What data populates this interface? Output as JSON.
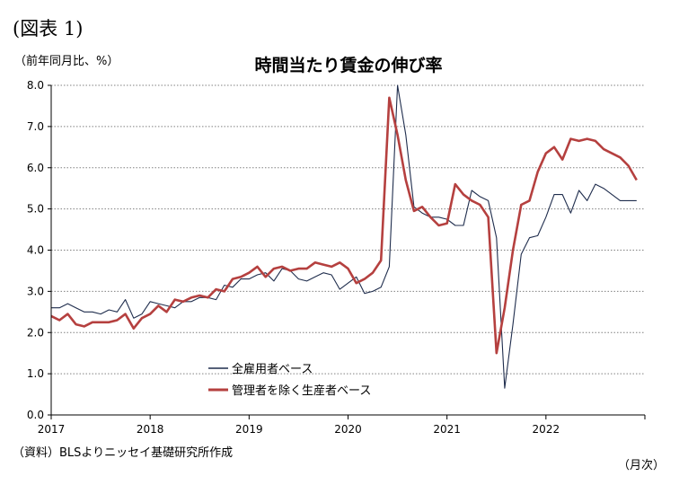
{
  "figure_label": "(図表 1)",
  "unit_label": "（前年同月比、%）",
  "source": "（資料）BLSよりニッセイ基礎研究所作成",
  "x_unit": "（月次）",
  "chart_data": {
    "type": "line",
    "title": "時間当たり賃金の伸び率",
    "ylabel": "（前年同月比、%）",
    "xlabel": "（月次）",
    "ylim": [
      0,
      8
    ],
    "yticks": [
      "0.0",
      "1.0",
      "2.0",
      "3.0",
      "4.0",
      "5.0",
      "6.0",
      "7.0",
      "8.0"
    ],
    "xticks": [
      "2017",
      "2018",
      "2019",
      "2020",
      "2021",
      "2022"
    ],
    "x_start": "2017-01",
    "grid": "horizontal dotted",
    "legend_position": "bottom-center",
    "series": [
      {
        "name": "全雇用者ベース",
        "color": "#1f2d4d",
        "values": [
          2.6,
          2.6,
          2.7,
          2.6,
          2.5,
          2.5,
          2.45,
          2.55,
          2.5,
          2.8,
          2.35,
          2.45,
          2.75,
          2.7,
          2.65,
          2.6,
          2.75,
          2.75,
          2.85,
          2.85,
          2.8,
          3.15,
          3.1,
          3.3,
          3.3,
          3.4,
          3.45,
          3.25,
          3.55,
          3.5,
          3.3,
          3.25,
          3.35,
          3.45,
          3.4,
          3.05,
          3.2,
          3.35,
          2.95,
          3.0,
          3.1,
          3.6,
          8.0,
          6.8,
          5.05,
          4.9,
          4.8,
          4.8,
          4.75,
          4.6,
          4.6,
          5.45,
          5.3,
          5.2,
          4.3,
          0.65,
          2.2,
          3.9,
          4.3,
          4.35,
          4.8,
          5.35,
          5.35,
          4.9,
          5.45,
          5.2,
          5.6,
          5.5,
          5.35,
          5.2,
          5.2,
          5.2
        ]
      },
      {
        "name": "管理者を除く生産者ベース",
        "color": "#b5403f",
        "values": [
          2.4,
          2.3,
          2.45,
          2.2,
          2.15,
          2.25,
          2.25,
          2.25,
          2.3,
          2.45,
          2.1,
          2.35,
          2.45,
          2.65,
          2.5,
          2.8,
          2.75,
          2.85,
          2.9,
          2.85,
          3.05,
          3.0,
          3.3,
          3.35,
          3.45,
          3.6,
          3.35,
          3.55,
          3.6,
          3.5,
          3.55,
          3.55,
          3.7,
          3.65,
          3.6,
          3.7,
          3.55,
          3.2,
          3.3,
          3.45,
          3.75,
          7.7,
          6.8,
          5.7,
          4.95,
          5.05,
          4.8,
          4.6,
          4.65,
          5.6,
          5.35,
          5.2,
          5.1,
          4.8,
          1.5,
          2.6,
          4.0,
          5.1,
          5.2,
          5.9,
          6.35,
          6.5,
          6.2,
          6.7,
          6.65,
          6.7,
          6.65,
          6.45,
          6.35,
          6.25,
          6.05,
          5.7
        ]
      }
    ]
  }
}
